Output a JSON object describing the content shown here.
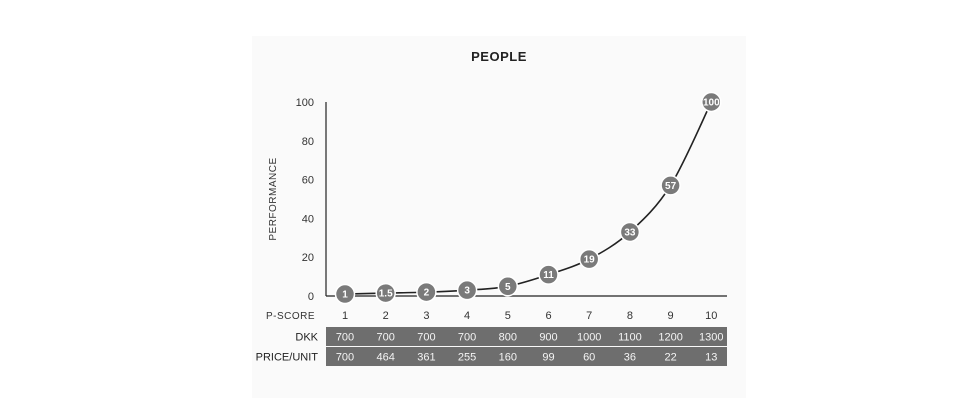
{
  "chart_data": {
    "type": "line",
    "title": "PEOPLE",
    "ylabel": "PERFORMANCE",
    "xlabel": "P-SCORE",
    "x": [
      1,
      2,
      3,
      4,
      5,
      6,
      7,
      8,
      9,
      10
    ],
    "ylim": [
      0,
      100
    ],
    "yticks": [
      0,
      20,
      40,
      60,
      80,
      100
    ],
    "series": [
      {
        "values": [
          1,
          1.5,
          2,
          3,
          5,
          11,
          19,
          33,
          57,
          100
        ],
        "point_labels": [
          "1",
          "1.5",
          "2",
          "3",
          "5",
          "11",
          "19",
          "33",
          "57",
          "100"
        ]
      }
    ],
    "table": [
      {
        "label": "DKK",
        "values": [
          "700",
          "700",
          "700",
          "700",
          "800",
          "900",
          "1000",
          "1100",
          "1200",
          "1300"
        ]
      },
      {
        "label": "PRICE/UNIT",
        "values": [
          "700",
          "464",
          "361",
          "255",
          "160",
          "99",
          "60",
          "36",
          "22",
          "13"
        ]
      }
    ],
    "grid": false,
    "colors": {
      "line": "#222222",
      "marker": "#7a7a7a",
      "marker_border": "#ffffff",
      "table_bg": "#6e6e6e",
      "table_text": "#f4f4f4"
    }
  }
}
